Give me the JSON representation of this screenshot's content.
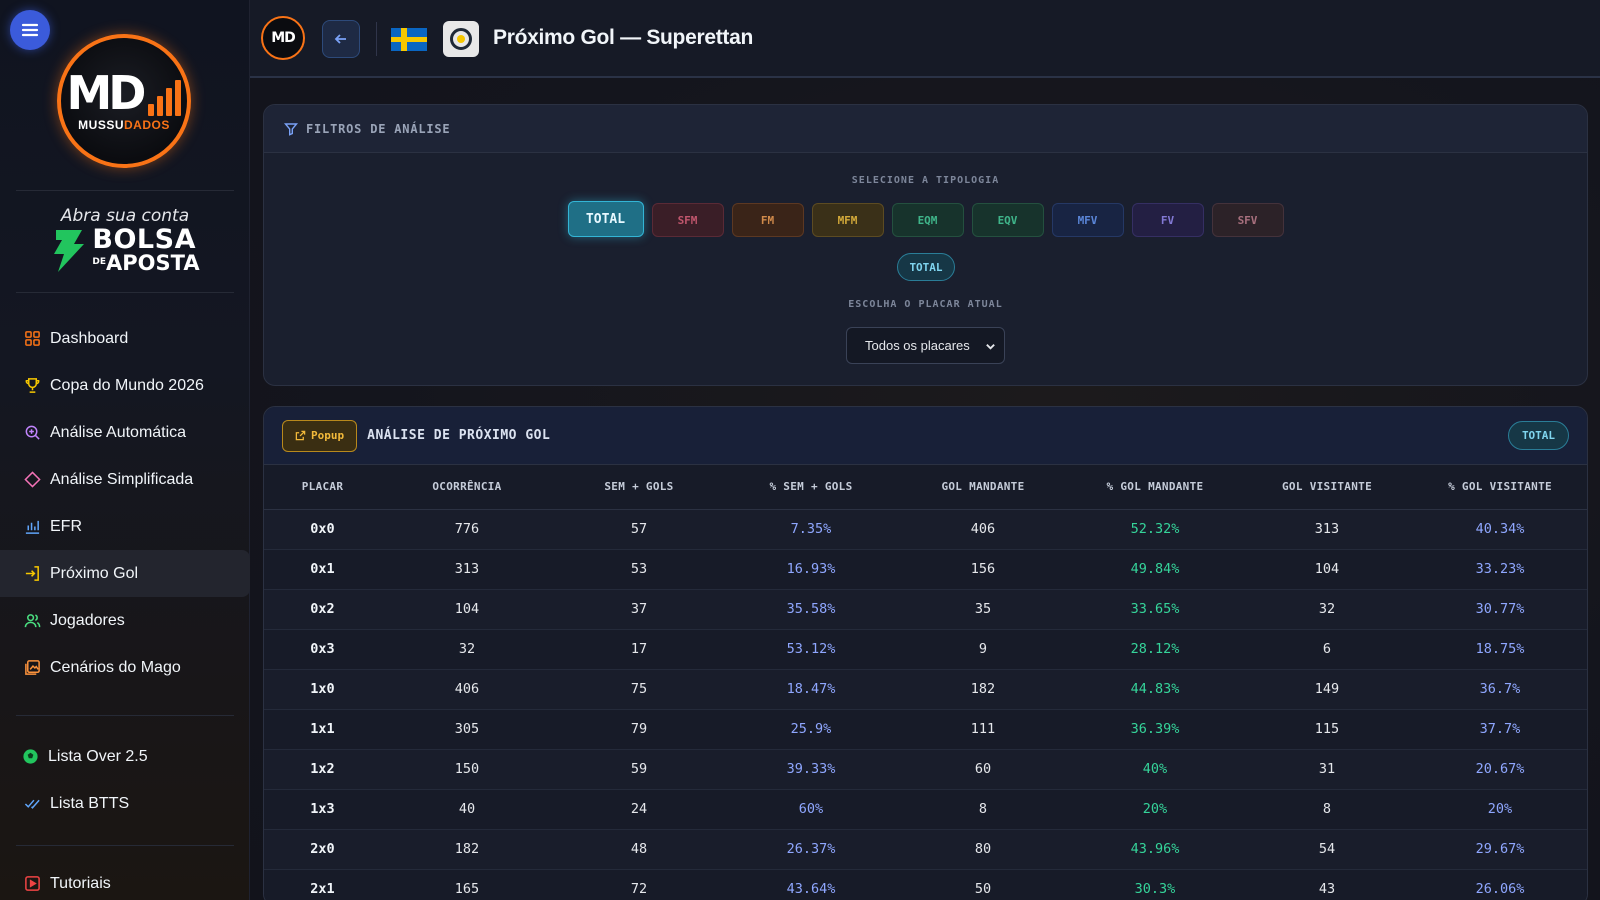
{
  "sidebar": {
    "brand_text_a": "MUSSU",
    "brand_text_b": "DADOS",
    "brand_mark": "MD",
    "promo": {
      "top": "Abra sua conta",
      "big": "BOLSA",
      "small_pre": "DE",
      "small": "APOSTA"
    },
    "items": [
      {
        "label": "Dashboard",
        "icon": "grid-icon",
        "color": "#f97316"
      },
      {
        "label": "Copa do Mundo 2026",
        "icon": "trophy-icon",
        "color": "#f6c700"
      },
      {
        "label": "Análise Automática",
        "icon": "zoom-plus-icon",
        "color": "#c084fc"
      },
      {
        "label": "Análise Simplificada",
        "icon": "diamond-icon",
        "color": "#f472b6"
      },
      {
        "label": "EFR",
        "icon": "bar-chart-icon",
        "color": "#60a5fa"
      },
      {
        "label": "Próximo Gol",
        "icon": "login-arrow-icon",
        "color": "#f6c700"
      },
      {
        "label": "Jogadores",
        "icon": "users-icon",
        "color": "#4ade80"
      },
      {
        "label": "Cenários do Mago",
        "icon": "image-icon",
        "color": "#fb923c"
      }
    ],
    "lists": [
      {
        "label": "Lista Over 2.5",
        "icon": "ball-icon",
        "color": "#22c55e"
      },
      {
        "label": "Lista BTTS",
        "icon": "double-check-icon",
        "color": "#60a5fa"
      }
    ],
    "extra": [
      {
        "label": "Tutoriais",
        "icon": "play-icon",
        "color": "#ef4444"
      }
    ]
  },
  "topbar": {
    "mini_logo": "MD",
    "title": "Próximo Gol — Superettan"
  },
  "filters": {
    "header": "FILTROS DE ANÁLISE",
    "typology_label": "SELECIONE A TIPOLOGIA",
    "typologies": [
      {
        "label": "TOTAL",
        "active": true,
        "bg": "#1f6f86",
        "border": "#33b5d6",
        "color": "#e6f8ff"
      },
      {
        "label": "SFM",
        "active": false,
        "bg": "#3a1e27",
        "border": "#5a2a36",
        "color": "#c0566d"
      },
      {
        "label": "FM",
        "active": false,
        "bg": "#3a2418",
        "border": "#5c3822",
        "color": "#d08a4a"
      },
      {
        "label": "MFM",
        "active": false,
        "bg": "#3a3018",
        "border": "#5c4b22",
        "color": "#d4aa3a"
      },
      {
        "label": "EQM",
        "active": false,
        "bg": "#17332c",
        "border": "#24503f",
        "color": "#3fb58a"
      },
      {
        "label": "EQV",
        "active": false,
        "bg": "#17332c",
        "border": "#24503f",
        "color": "#3fb58a"
      },
      {
        "label": "MFV",
        "active": false,
        "bg": "#182443",
        "border": "#253865",
        "color": "#5b86d8"
      },
      {
        "label": "FV",
        "active": false,
        "bg": "#231f43",
        "border": "#352f63",
        "color": "#8279d4"
      },
      {
        "label": "SFV",
        "active": false,
        "bg": "#2c2228",
        "border": "#44323b",
        "color": "#a8707e"
      }
    ],
    "selected_chip": "TOTAL",
    "score_label": "ESCOLHA O PLACAR ATUAL",
    "score_value": "Todos os placares"
  },
  "results": {
    "popup_label": "Popup",
    "title": "ANÁLISE DE PRÓXIMO GOL",
    "chip": "TOTAL",
    "columns": [
      "PLACAR",
      "OCORRÊNCIA",
      "SEM + GOLS",
      "% SEM + GOLS",
      "GOL MANDANTE",
      "% GOL MANDANTE",
      "GOL VISITANTE",
      "% GOL VISITANTE"
    ],
    "rows": [
      [
        "0x0",
        "776",
        "57",
        "7.35%",
        "406",
        "52.32%",
        "313",
        "40.34%"
      ],
      [
        "0x1",
        "313",
        "53",
        "16.93%",
        "156",
        "49.84%",
        "104",
        "33.23%"
      ],
      [
        "0x2",
        "104",
        "37",
        "35.58%",
        "35",
        "33.65%",
        "32",
        "30.77%"
      ],
      [
        "0x3",
        "32",
        "17",
        "53.12%",
        "9",
        "28.12%",
        "6",
        "18.75%"
      ],
      [
        "1x0",
        "406",
        "75",
        "18.47%",
        "182",
        "44.83%",
        "149",
        "36.7%"
      ],
      [
        "1x1",
        "305",
        "79",
        "25.9%",
        "111",
        "36.39%",
        "115",
        "37.7%"
      ],
      [
        "1x2",
        "150",
        "59",
        "39.33%",
        "60",
        "40%",
        "31",
        "20.67%"
      ],
      [
        "1x3",
        "40",
        "24",
        "60%",
        "8",
        "20%",
        "8",
        "20%"
      ],
      [
        "2x0",
        "182",
        "48",
        "26.37%",
        "80",
        "43.96%",
        "54",
        "29.67%"
      ],
      [
        "2x1",
        "165",
        "72",
        "43.64%",
        "50",
        "30.3%",
        "43",
        "26.06%"
      ]
    ]
  }
}
